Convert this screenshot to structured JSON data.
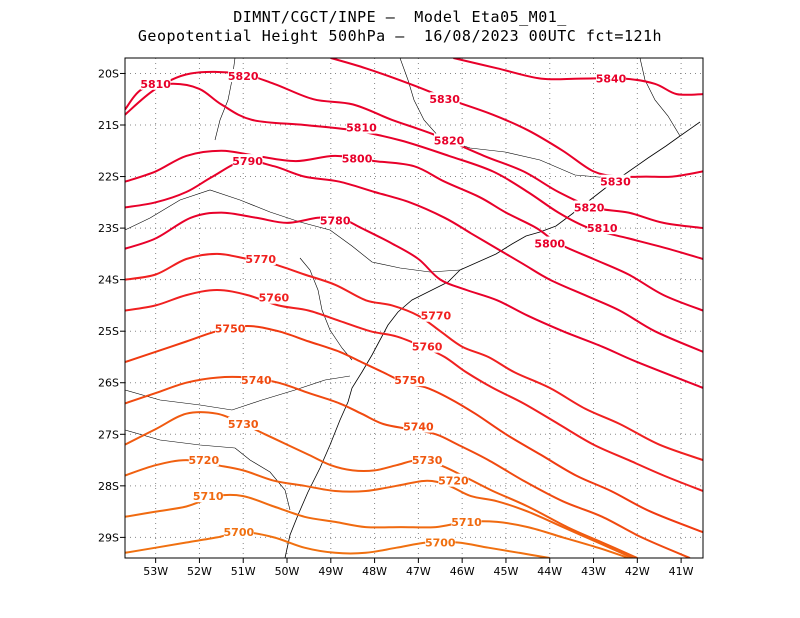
{
  "title": {
    "line1": "DIMNT/CGCT/INPE –  Model Eta05_M01_",
    "line2": "Geopotential Height 500hPa –  16/08/2023 00UTC fct=121h"
  },
  "axes": {
    "lon_range": [
      -53.7,
      -40.5
    ],
    "lat_range": [
      -29.4,
      -19.7
    ],
    "lon_ticks": [
      {
        "value": -53,
        "label": "53W"
      },
      {
        "value": -52,
        "label": "52W"
      },
      {
        "value": -51,
        "label": "51W"
      },
      {
        "value": -50,
        "label": "50W"
      },
      {
        "value": -49,
        "label": "49W"
      },
      {
        "value": -48,
        "label": "48W"
      },
      {
        "value": -47,
        "label": "47W"
      },
      {
        "value": -46,
        "label": "46W"
      },
      {
        "value": -45,
        "label": "45W"
      },
      {
        "value": -44,
        "label": "44W"
      },
      {
        "value": -43,
        "label": "43W"
      },
      {
        "value": -42,
        "label": "42W"
      },
      {
        "value": -41,
        "label": "41W"
      }
    ],
    "lat_ticks": [
      {
        "value": -20,
        "label": "20S"
      },
      {
        "value": -21,
        "label": "21S"
      },
      {
        "value": -22,
        "label": "22S"
      },
      {
        "value": -23,
        "label": "23S"
      },
      {
        "value": -24,
        "label": "24S"
      },
      {
        "value": -25,
        "label": "25S"
      },
      {
        "value": -26,
        "label": "26S"
      },
      {
        "value": -27,
        "label": "27S"
      },
      {
        "value": -28,
        "label": "28S"
      },
      {
        "value": -29,
        "label": "29S"
      }
    ]
  },
  "contours": [
    {
      "level": "5840",
      "color": "#e8002a",
      "points": [
        [
          -46.2,
          -19.7
        ],
        [
          -45.2,
          -19.9
        ],
        [
          -44.2,
          -20.1
        ],
        [
          -43.3,
          -20.1
        ],
        [
          -42.3,
          -20.1
        ],
        [
          -41.6,
          -20.2
        ],
        [
          -41.1,
          -20.4
        ],
        [
          -40.5,
          -20.4
        ]
      ],
      "labels": [
        [
          -42.6,
          -20.1
        ]
      ]
    },
    {
      "level": "5830",
      "color": "#e8002a",
      "points": [
        [
          -49.0,
          -19.7
        ],
        [
          -48.2,
          -19.9
        ],
        [
          -47.2,
          -20.2
        ],
        [
          -46.3,
          -20.5
        ],
        [
          -45.3,
          -20.8
        ],
        [
          -44.5,
          -21.1
        ],
        [
          -43.7,
          -21.5
        ],
        [
          -43.0,
          -21.9
        ],
        [
          -42.4,
          -22.0
        ],
        [
          -41.8,
          -22.0
        ],
        [
          -41.2,
          -22.0
        ],
        [
          -40.5,
          -21.9
        ]
      ],
      "labels": [
        [
          -46.4,
          -20.5
        ],
        [
          -42.5,
          -22.1
        ]
      ]
    },
    {
      "level": "5820",
      "color": "#e8002a",
      "points": [
        [
          -53.7,
          -20.8
        ],
        [
          -53.0,
          -20.3
        ],
        [
          -52.2,
          -20.0
        ],
        [
          -51.1,
          -20.0
        ],
        [
          -50.3,
          -20.2
        ],
        [
          -49.4,
          -20.5
        ],
        [
          -48.5,
          -20.6
        ],
        [
          -47.6,
          -20.9
        ],
        [
          -46.6,
          -21.2
        ],
        [
          -45.5,
          -21.6
        ],
        [
          -44.6,
          -21.9
        ],
        [
          -43.8,
          -22.3
        ],
        [
          -43.0,
          -22.6
        ],
        [
          -42.2,
          -22.7
        ],
        [
          -41.4,
          -22.9
        ],
        [
          -40.5,
          -23.0
        ]
      ],
      "labels": [
        [
          -51.0,
          -20.05
        ],
        [
          -46.3,
          -21.3
        ],
        [
          -43.1,
          -22.6
        ]
      ]
    },
    {
      "level": "5810",
      "color": "#e8002a",
      "points": [
        [
          -53.7,
          -20.7
        ],
        [
          -53.3,
          -20.3
        ],
        [
          -52.6,
          -20.2
        ],
        [
          -52.0,
          -20.3
        ],
        [
          -51.5,
          -20.6
        ],
        [
          -50.8,
          -20.9
        ],
        [
          -49.6,
          -21.0
        ],
        [
          -48.5,
          -21.1
        ],
        [
          -47.4,
          -21.3
        ],
        [
          -46.3,
          -21.6
        ],
        [
          -45.3,
          -21.9
        ],
        [
          -44.5,
          -22.3
        ],
        [
          -43.8,
          -22.7
        ],
        [
          -43.1,
          -23.0
        ],
        [
          -42.2,
          -23.2
        ],
        [
          -41.3,
          -23.4
        ],
        [
          -40.5,
          -23.6
        ]
      ],
      "labels": [
        [
          -53.0,
          -20.2
        ],
        [
          -48.3,
          -21.05
        ],
        [
          -42.8,
          -23.0
        ]
      ]
    },
    {
      "level": "5800",
      "color": "#e8002a",
      "points": [
        [
          -53.7,
          -22.1
        ],
        [
          -53.0,
          -21.9
        ],
        [
          -52.3,
          -21.6
        ],
        [
          -51.5,
          -21.5
        ],
        [
          -50.7,
          -21.6
        ],
        [
          -49.8,
          -21.7
        ],
        [
          -48.9,
          -21.6
        ],
        [
          -48.0,
          -21.7
        ],
        [
          -47.1,
          -21.8
        ],
        [
          -46.4,
          -22.1
        ],
        [
          -45.6,
          -22.4
        ],
        [
          -45.0,
          -22.7
        ],
        [
          -44.3,
          -23.0
        ],
        [
          -43.8,
          -23.3
        ],
        [
          -43.0,
          -23.6
        ],
        [
          -42.2,
          -23.9
        ],
        [
          -41.4,
          -24.3
        ],
        [
          -40.5,
          -24.6
        ]
      ],
      "labels": [
        [
          -48.4,
          -21.65
        ],
        [
          -44.0,
          -23.3
        ]
      ]
    },
    {
      "level": "5790",
      "color": "#e8002a",
      "points": [
        [
          -53.7,
          -22.6
        ],
        [
          -53.0,
          -22.5
        ],
        [
          -52.3,
          -22.3
        ],
        [
          -51.7,
          -22.0
        ],
        [
          -51.0,
          -21.7
        ],
        [
          -50.3,
          -21.8
        ],
        [
          -49.6,
          -22.0
        ],
        [
          -48.8,
          -22.1
        ],
        [
          -48.0,
          -22.3
        ],
        [
          -47.2,
          -22.5
        ],
        [
          -46.4,
          -22.8
        ],
        [
          -45.8,
          -23.1
        ],
        [
          -45.2,
          -23.4
        ],
        [
          -44.6,
          -23.7
        ],
        [
          -44.0,
          -24.0
        ],
        [
          -43.2,
          -24.3
        ],
        [
          -42.4,
          -24.6
        ],
        [
          -41.6,
          -25.0
        ],
        [
          -40.5,
          -25.4
        ]
      ],
      "labels": [
        [
          -50.9,
          -21.7
        ]
      ]
    },
    {
      "level": "5780",
      "color": "#e8002a",
      "points": [
        [
          -53.7,
          -23.4
        ],
        [
          -53.0,
          -23.2
        ],
        [
          -52.2,
          -22.8
        ],
        [
          -51.5,
          -22.7
        ],
        [
          -50.7,
          -22.8
        ],
        [
          -50.0,
          -22.9
        ],
        [
          -49.3,
          -22.8
        ],
        [
          -48.8,
          -22.8
        ],
        [
          -48.3,
          -23.0
        ],
        [
          -47.6,
          -23.3
        ],
        [
          -47.0,
          -23.6
        ],
        [
          -46.5,
          -24.0
        ],
        [
          -45.9,
          -24.2
        ],
        [
          -45.2,
          -24.4
        ],
        [
          -44.5,
          -24.7
        ],
        [
          -43.7,
          -25.0
        ],
        [
          -42.8,
          -25.3
        ],
        [
          -42.0,
          -25.6
        ],
        [
          -40.5,
          -26.1
        ]
      ],
      "labels": [
        [
          -48.9,
          -22.85
        ]
      ]
    },
    {
      "level": "5770",
      "color": "#f02020",
      "points": [
        [
          -53.7,
          -24.0
        ],
        [
          -53.0,
          -23.9
        ],
        [
          -52.3,
          -23.6
        ],
        [
          -51.6,
          -23.5
        ],
        [
          -50.9,
          -23.6
        ],
        [
          -50.3,
          -23.7
        ],
        [
          -49.6,
          -23.9
        ],
        [
          -48.9,
          -24.1
        ],
        [
          -48.2,
          -24.4
        ],
        [
          -47.6,
          -24.5
        ],
        [
          -47.0,
          -24.7
        ],
        [
          -46.5,
          -25.0
        ],
        [
          -46.0,
          -25.3
        ],
        [
          -45.4,
          -25.5
        ],
        [
          -44.8,
          -25.8
        ],
        [
          -44.0,
          -26.1
        ],
        [
          -43.2,
          -26.5
        ],
        [
          -42.4,
          -26.8
        ],
        [
          -41.5,
          -27.2
        ],
        [
          -40.5,
          -27.5
        ]
      ],
      "labels": [
        [
          -50.6,
          -23.6
        ],
        [
          -46.6,
          -24.7
        ]
      ]
    },
    {
      "level": "5760",
      "color": "#f02020",
      "points": [
        [
          -53.7,
          -24.6
        ],
        [
          -53.0,
          -24.5
        ],
        [
          -52.3,
          -24.3
        ],
        [
          -51.6,
          -24.2
        ],
        [
          -50.9,
          -24.3
        ],
        [
          -50.2,
          -24.5
        ],
        [
          -49.5,
          -24.6
        ],
        [
          -48.8,
          -24.8
        ],
        [
          -48.1,
          -25.0
        ],
        [
          -47.5,
          -25.1
        ],
        [
          -46.9,
          -25.3
        ],
        [
          -46.4,
          -25.5
        ],
        [
          -45.9,
          -25.8
        ],
        [
          -45.3,
          -26.1
        ],
        [
          -44.6,
          -26.4
        ],
        [
          -43.8,
          -26.8
        ],
        [
          -43.0,
          -27.2
        ],
        [
          -42.2,
          -27.5
        ],
        [
          -41.4,
          -27.8
        ],
        [
          -40.5,
          -28.1
        ]
      ],
      "labels": [
        [
          -50.3,
          -24.35
        ],
        [
          -46.8,
          -25.3
        ]
      ]
    },
    {
      "level": "5750",
      "color": "#f03a10",
      "points": [
        [
          -53.7,
          -25.6
        ],
        [
          -53.0,
          -25.4
        ],
        [
          -52.3,
          -25.2
        ],
        [
          -51.6,
          -25.0
        ],
        [
          -50.9,
          -24.9
        ],
        [
          -50.2,
          -25.0
        ],
        [
          -49.5,
          -25.2
        ],
        [
          -48.8,
          -25.4
        ],
        [
          -48.3,
          -25.6
        ],
        [
          -47.8,
          -25.8
        ],
        [
          -47.3,
          -26.0
        ],
        [
          -46.8,
          -26.1
        ],
        [
          -46.3,
          -26.3
        ],
        [
          -45.7,
          -26.6
        ],
        [
          -45.0,
          -27.0
        ],
        [
          -44.2,
          -27.4
        ],
        [
          -43.4,
          -27.8
        ],
        [
          -42.6,
          -28.1
        ],
        [
          -41.7,
          -28.5
        ],
        [
          -40.5,
          -28.9
        ]
      ],
      "labels": [
        [
          -51.3,
          -24.95
        ],
        [
          -47.2,
          -25.95
        ]
      ]
    },
    {
      "level": "5740",
      "color": "#f04a10",
      "points": [
        [
          -53.7,
          -26.4
        ],
        [
          -53.0,
          -26.2
        ],
        [
          -52.3,
          -26.0
        ],
        [
          -51.6,
          -25.9
        ],
        [
          -50.9,
          -25.9
        ],
        [
          -50.2,
          -26.0
        ],
        [
          -49.5,
          -26.2
        ],
        [
          -48.8,
          -26.4
        ],
        [
          -48.3,
          -26.6
        ],
        [
          -47.8,
          -26.8
        ],
        [
          -47.2,
          -26.9
        ],
        [
          -46.6,
          -27.0
        ],
        [
          -46.1,
          -27.2
        ],
        [
          -45.4,
          -27.5
        ],
        [
          -44.6,
          -27.9
        ],
        [
          -43.7,
          -28.3
        ],
        [
          -42.8,
          -28.6
        ],
        [
          -41.9,
          -29.0
        ],
        [
          -40.8,
          -29.4
        ]
      ],
      "labels": [
        [
          -50.7,
          -25.95
        ],
        [
          -47.0,
          -26.85
        ]
      ]
    },
    {
      "level": "5730",
      "color": "#f05a10",
      "points": [
        [
          -53.7,
          -27.2
        ],
        [
          -53.0,
          -26.9
        ],
        [
          -52.3,
          -26.6
        ],
        [
          -51.6,
          -26.6
        ],
        [
          -51.0,
          -26.8
        ],
        [
          -50.5,
          -27.0
        ],
        [
          -50.0,
          -27.2
        ],
        [
          -49.5,
          -27.4
        ],
        [
          -49.0,
          -27.6
        ],
        [
          -48.5,
          -27.7
        ],
        [
          -48.0,
          -27.7
        ],
        [
          -47.5,
          -27.6
        ],
        [
          -47.0,
          -27.5
        ],
        [
          -46.5,
          -27.6
        ],
        [
          -46.0,
          -27.8
        ],
        [
          -45.3,
          -28.1
        ],
        [
          -44.5,
          -28.4
        ],
        [
          -43.6,
          -28.8
        ],
        [
          -42.8,
          -29.1
        ],
        [
          -42.0,
          -29.4
        ]
      ],
      "labels": [
        [
          -51.0,
          -26.8
        ],
        [
          -46.8,
          -27.5
        ]
      ]
    },
    {
      "level": "5720",
      "color": "#f06010",
      "points": [
        [
          -53.7,
          -27.8
        ],
        [
          -53.0,
          -27.6
        ],
        [
          -52.3,
          -27.5
        ],
        [
          -51.6,
          -27.6
        ],
        [
          -51.0,
          -27.7
        ],
        [
          -50.3,
          -27.9
        ],
        [
          -49.6,
          -28.0
        ],
        [
          -48.9,
          -28.1
        ],
        [
          -48.2,
          -28.1
        ],
        [
          -47.5,
          -28.0
        ],
        [
          -46.8,
          -27.9
        ],
        [
          -46.3,
          -28.0
        ],
        [
          -45.8,
          -28.2
        ],
        [
          -45.2,
          -28.3
        ],
        [
          -44.5,
          -28.5
        ],
        [
          -43.7,
          -28.8
        ],
        [
          -42.9,
          -29.1
        ],
        [
          -42.1,
          -29.4
        ]
      ],
      "labels": [
        [
          -51.9,
          -27.5
        ],
        [
          -46.2,
          -27.9
        ]
      ]
    },
    {
      "level": "5710",
      "color": "#f06a10",
      "points": [
        [
          -53.7,
          -28.6
        ],
        [
          -53.0,
          -28.5
        ],
        [
          -52.3,
          -28.4
        ],
        [
          -51.6,
          -28.2
        ],
        [
          -51.0,
          -28.2
        ],
        [
          -50.3,
          -28.4
        ],
        [
          -49.6,
          -28.6
        ],
        [
          -48.9,
          -28.7
        ],
        [
          -48.2,
          -28.8
        ],
        [
          -47.4,
          -28.8
        ],
        [
          -46.6,
          -28.8
        ],
        [
          -45.9,
          -28.7
        ],
        [
          -45.2,
          -28.7
        ],
        [
          -44.5,
          -28.8
        ],
        [
          -43.7,
          -29.0
        ],
        [
          -42.9,
          -29.2
        ],
        [
          -42.2,
          -29.4
        ]
      ],
      "labels": [
        [
          -51.8,
          -28.2
        ],
        [
          -45.9,
          -28.7
        ]
      ]
    },
    {
      "level": "5700",
      "color": "#f07010",
      "points": [
        [
          -53.7,
          -29.3
        ],
        [
          -53.0,
          -29.2
        ],
        [
          -52.3,
          -29.1
        ],
        [
          -51.6,
          -29.0
        ],
        [
          -51.0,
          -28.9
        ],
        [
          -50.3,
          -29.0
        ],
        [
          -49.6,
          -29.2
        ],
        [
          -48.9,
          -29.3
        ],
        [
          -48.2,
          -29.3
        ],
        [
          -47.5,
          -29.2
        ],
        [
          -46.8,
          -29.1
        ],
        [
          -46.1,
          -29.1
        ],
        [
          -45.4,
          -29.2
        ],
        [
          -44.7,
          -29.3
        ],
        [
          -44.0,
          -29.4
        ]
      ],
      "labels": [
        [
          -51.1,
          -28.9
        ],
        [
          -46.5,
          -29.1
        ]
      ]
    }
  ]
}
